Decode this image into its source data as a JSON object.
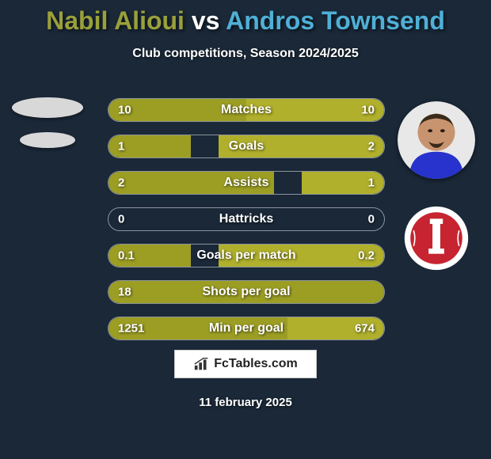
{
  "title": {
    "player1": "Nabil Alioui",
    "vs": "vs",
    "player2": "Andros Townsend",
    "color_p1": "#9aa03a",
    "color_vs": "#ffffff",
    "color_p2": "#4fb0d6"
  },
  "subtitle": "Club competitions, Season 2024/2025",
  "bar_color_p1": "#9c9e24",
  "bar_color_p2": "#b0b02c",
  "background_color": "#1a2838",
  "stats": [
    {
      "label": "Matches",
      "p1": "10",
      "p2": "10",
      "w1": 50,
      "w2": 50
    },
    {
      "label": "Goals",
      "p1": "1",
      "p2": "2",
      "w1": 30,
      "w2": 60
    },
    {
      "label": "Assists",
      "p1": "2",
      "p2": "1",
      "w1": 60,
      "w2": 30
    },
    {
      "label": "Hattricks",
      "p1": "0",
      "p2": "0",
      "w1": 0,
      "w2": 0
    },
    {
      "label": "Goals per match",
      "p1": "0.1",
      "p2": "0.2",
      "w1": 30,
      "w2": 60
    },
    {
      "label": "Shots per goal",
      "p1": "18",
      "p2": "",
      "w1": 100,
      "w2": 0
    },
    {
      "label": "Min per goal",
      "p1": "1251",
      "p2": "674",
      "w1": 65,
      "w2": 35
    }
  ],
  "p2_avatar": {
    "bg": "#c89470",
    "jersey": "#2733cc"
  },
  "p2_team_logo": {
    "outer": "#ffffff",
    "inner": "#c62430",
    "tower": "#ffffff"
  },
  "footer_brand": "FcTables.com",
  "date": "11 february 2025"
}
